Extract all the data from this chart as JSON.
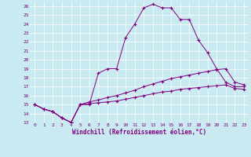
{
  "xlabel": "Windchill (Refroidissement éolien,°C)",
  "xlim": [
    -0.5,
    23.5
  ],
  "ylim": [
    13,
    26.5
  ],
  "yticks": [
    13,
    14,
    15,
    16,
    17,
    18,
    19,
    20,
    21,
    22,
    23,
    24,
    25,
    26
  ],
  "xticks": [
    0,
    1,
    2,
    3,
    4,
    5,
    6,
    7,
    8,
    9,
    10,
    11,
    12,
    13,
    14,
    15,
    16,
    17,
    18,
    19,
    20,
    21,
    22,
    23
  ],
  "bg_color": "#c8eaf0",
  "line_color": "#800080",
  "grid_color": "#ffffff",
  "series": [
    {
      "x": [
        0,
        1,
        2,
        3,
        4,
        5,
        6,
        7,
        8,
        9,
        10,
        11,
        12,
        13,
        14,
        15,
        16,
        17,
        18,
        19,
        20,
        21,
        22,
        23
      ],
      "y": [
        15.0,
        14.5,
        14.2,
        13.5,
        13.0,
        15.0,
        15.0,
        18.5,
        19.0,
        19.0,
        22.5,
        24.0,
        25.8,
        26.2,
        25.8,
        25.8,
        24.5,
        24.5,
        22.2,
        20.8,
        19.0,
        17.5,
        17.0,
        17.0
      ]
    },
    {
      "x": [
        0,
        1,
        2,
        3,
        4,
        5,
        6,
        7,
        8,
        9,
        10,
        11,
        12,
        13,
        14,
        15,
        16,
        17,
        18,
        19,
        20,
        21,
        22,
        23
      ],
      "y": [
        15.0,
        14.5,
        14.2,
        13.5,
        13.0,
        15.0,
        15.3,
        15.5,
        15.8,
        16.0,
        16.3,
        16.6,
        17.0,
        17.3,
        17.6,
        17.9,
        18.1,
        18.3,
        18.5,
        18.7,
        18.9,
        19.0,
        17.5,
        17.2
      ]
    },
    {
      "x": [
        0,
        1,
        2,
        3,
        4,
        5,
        6,
        7,
        8,
        9,
        10,
        11,
        12,
        13,
        14,
        15,
        16,
        17,
        18,
        19,
        20,
        21,
        22,
        23
      ],
      "y": [
        15.0,
        14.5,
        14.2,
        13.5,
        13.0,
        15.0,
        15.1,
        15.2,
        15.3,
        15.4,
        15.6,
        15.8,
        16.0,
        16.2,
        16.4,
        16.5,
        16.7,
        16.8,
        16.9,
        17.0,
        17.1,
        17.2,
        16.8,
        16.7
      ]
    }
  ]
}
